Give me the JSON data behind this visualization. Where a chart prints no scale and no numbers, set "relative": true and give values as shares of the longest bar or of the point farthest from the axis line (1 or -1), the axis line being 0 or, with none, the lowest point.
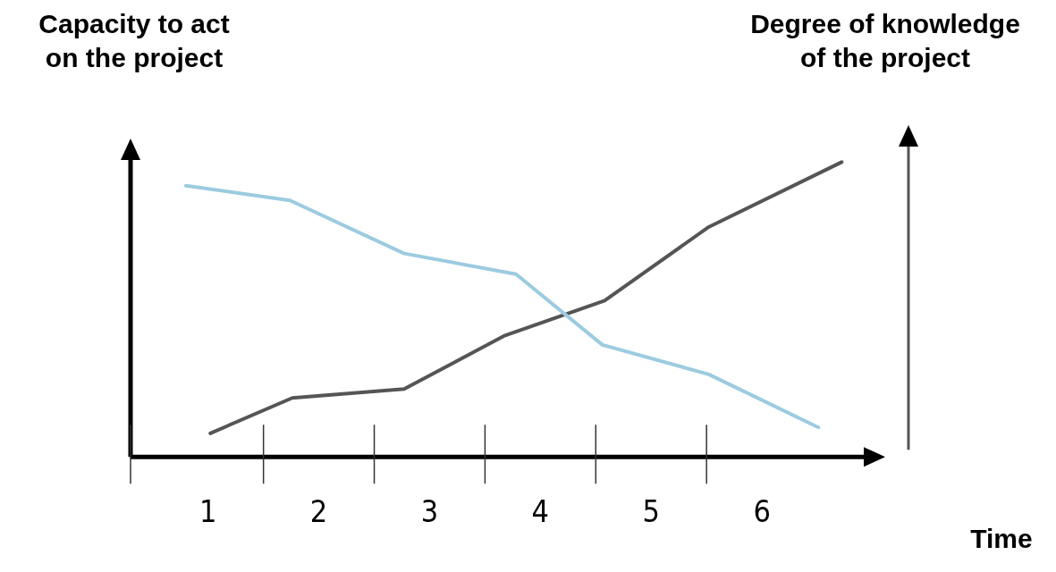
{
  "chart_data": {
    "type": "line",
    "relative": true,
    "ylabel": "Capacity to act\non the project",
    "y2label": "Degree of knowledge\nof the project",
    "xlabel": "Time",
    "xlim": [
      0.3,
      7
    ],
    "xticks": [
      1,
      2,
      3,
      4,
      5,
      6
    ],
    "series": [
      {
        "color": "#9ccbe0",
        "x": [
          0.8,
          1.74,
          2.77,
          3.78,
          4.56,
          5.52,
          6.51
        ],
        "values": [
          0.92,
          0.87,
          0.69,
          0.62,
          0.38,
          0.28,
          0.1
        ]
      },
      {
        "color": "#555555",
        "axis": "y2",
        "x": [
          1.02,
          1.76,
          2.77,
          3.67,
          4.58,
          5.52,
          6.72
        ],
        "values": [
          0.08,
          0.2,
          0.23,
          0.41,
          0.53,
          0.78,
          1
        ]
      }
    ],
    "grid": false,
    "legend": false,
    "marker": "none",
    "line_style": "solid"
  }
}
